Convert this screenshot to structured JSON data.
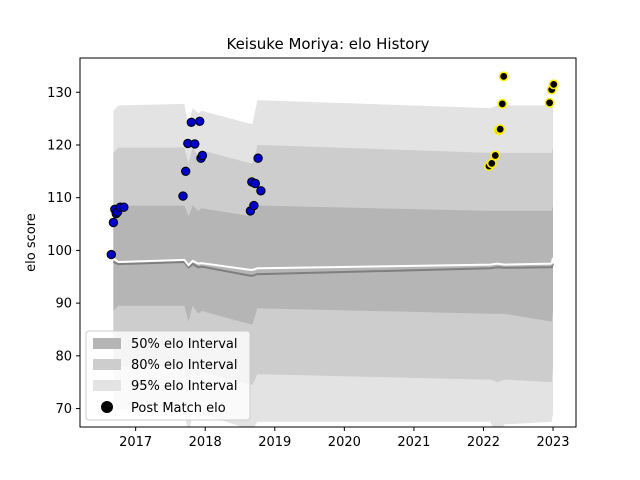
{
  "chart_data": {
    "type": "line",
    "title": "Keisuke Moriya: elo History",
    "xlabel": "",
    "ylabel": "elo score",
    "xlim": [
      2016.2,
      2023.33
    ],
    "ylim": [
      66.5,
      136.5
    ],
    "x_ticks": [
      2017,
      2018,
      2019,
      2020,
      2021,
      2022,
      2023
    ],
    "x_tick_labels": [
      "2017",
      "2018",
      "2019",
      "2020",
      "2021",
      "2022",
      "2023"
    ],
    "y_ticks": [
      70,
      80,
      90,
      100,
      110,
      120,
      130
    ],
    "y_tick_labels": [
      "70",
      "80",
      "90",
      "100",
      "110",
      "120",
      "130"
    ],
    "grid": false,
    "legend_position": "lower-left",
    "legend": [
      {
        "label": "50% elo Interval",
        "swatch": "band50"
      },
      {
        "label": "80% elo Interval",
        "swatch": "band80"
      },
      {
        "label": "95% elo Interval",
        "swatch": "band95"
      },
      {
        "label": "Post Match elo",
        "swatch": "marker"
      }
    ],
    "colors": {
      "band95": "#e3e3e3",
      "band80": "#cdcdcd",
      "band50": "#b5b5b5",
      "mean_line": "#ffffff",
      "median_line": "#7f7f7f",
      "point_blue": "#0000cc",
      "point_yellow": "#ffee00",
      "point_edge": "#000000"
    },
    "bands": {
      "x": [
        2016.68,
        2016.75,
        2017.7,
        2017.76,
        2017.82,
        2017.9,
        2017.95,
        2018.65,
        2018.68,
        2018.75,
        2018.8,
        2022.1,
        2022.2,
        2022.3,
        2022.98,
        2023.0
      ],
      "p95_upper": [
        126.5,
        127.5,
        127.8,
        123.5,
        127.0,
        126.0,
        126.5,
        124.0,
        124.0,
        128.5,
        128.5,
        127.0,
        127.5,
        127.5,
        127.5,
        127.5
      ],
      "p80_upper": [
        118.5,
        119.5,
        119.5,
        116.5,
        119.5,
        118.0,
        119.0,
        116.5,
        116.5,
        120.0,
        120.0,
        118.5,
        118.5,
        118.5,
        118.5,
        119.5
      ],
      "p50_upper": [
        107.5,
        108.5,
        108.5,
        106.5,
        108.5,
        107.5,
        108.0,
        106.5,
        106.5,
        108.5,
        108.5,
        107.5,
        107.5,
        107.5,
        107.5,
        108.5
      ],
      "p50_lower": [
        88.5,
        89.5,
        89.5,
        86.5,
        89.5,
        88.0,
        88.5,
        86.0,
        86.0,
        89.0,
        89.0,
        88.0,
        88.0,
        88.0,
        86.5,
        88.5
      ],
      "p80_lower": [
        77.5,
        78.0,
        78.0,
        73.5,
        77.5,
        76.0,
        77.0,
        74.5,
        74.5,
        76.5,
        76.5,
        75.5,
        75.0,
        75.5,
        75.0,
        78.0
      ],
      "p95_lower": [
        69.5,
        70.0,
        69.5,
        65.0,
        69.0,
        68.0,
        69.0,
        66.0,
        66.0,
        67.5,
        67.5,
        67.5,
        64.5,
        67.0,
        67.5,
        69.0
      ]
    },
    "mean_line": {
      "x": [
        2016.68,
        2016.75,
        2017.7,
        2017.76,
        2017.82,
        2017.9,
        2017.95,
        2018.65,
        2018.68,
        2018.75,
        2018.8,
        2022.1,
        2022.2,
        2022.3,
        2022.98,
        2023.0
      ],
      "y": [
        98.5,
        97.8,
        98.2,
        97.2,
        98.0,
        97.5,
        97.6,
        96.3,
        96.3,
        96.6,
        96.6,
        97.3,
        97.5,
        97.3,
        97.5,
        98.6
      ]
    },
    "median_line": {
      "x": [
        2016.68,
        2016.75,
        2017.7,
        2017.76,
        2017.82,
        2017.9,
        2017.95,
        2018.65,
        2018.68,
        2018.75,
        2018.8,
        2022.1,
        2022.2,
        2022.3,
        2022.98,
        2023.0
      ],
      "y": [
        97.8,
        97.4,
        97.8,
        96.8,
        97.4,
        96.8,
        96.9,
        95.2,
        95.2,
        95.5,
        95.5,
        96.6,
        96.8,
        96.7,
        96.8,
        97.5
      ]
    },
    "points": [
      {
        "x": 2016.65,
        "y": 99.2,
        "color": "blue"
      },
      {
        "x": 2016.68,
        "y": 105.3,
        "color": "blue"
      },
      {
        "x": 2016.7,
        "y": 107.8,
        "color": "blue"
      },
      {
        "x": 2016.72,
        "y": 107.0,
        "color": "blue"
      },
      {
        "x": 2016.74,
        "y": 107.3,
        "color": "blue"
      },
      {
        "x": 2016.78,
        "y": 108.2,
        "color": "blue"
      },
      {
        "x": 2016.83,
        "y": 108.2,
        "color": "blue"
      },
      {
        "x": 2017.68,
        "y": 110.3,
        "color": "blue"
      },
      {
        "x": 2017.72,
        "y": 115.0,
        "color": "blue"
      },
      {
        "x": 2017.75,
        "y": 120.3,
        "color": "blue"
      },
      {
        "x": 2017.8,
        "y": 124.3,
        "color": "blue"
      },
      {
        "x": 2017.85,
        "y": 120.2,
        "color": "blue"
      },
      {
        "x": 2017.92,
        "y": 124.5,
        "color": "blue"
      },
      {
        "x": 2017.94,
        "y": 117.5,
        "color": "blue"
      },
      {
        "x": 2017.96,
        "y": 118.0,
        "color": "blue"
      },
      {
        "x": 2018.65,
        "y": 107.5,
        "color": "blue"
      },
      {
        "x": 2018.67,
        "y": 113.0,
        "color": "blue"
      },
      {
        "x": 2018.7,
        "y": 108.5,
        "color": "blue"
      },
      {
        "x": 2018.72,
        "y": 112.7,
        "color": "blue"
      },
      {
        "x": 2018.76,
        "y": 117.5,
        "color": "blue"
      },
      {
        "x": 2018.8,
        "y": 111.3,
        "color": "blue"
      },
      {
        "x": 2022.08,
        "y": 116.0,
        "color": "yellow"
      },
      {
        "x": 2022.12,
        "y": 116.5,
        "color": "yellow"
      },
      {
        "x": 2022.17,
        "y": 118.0,
        "color": "yellow"
      },
      {
        "x": 2022.22,
        "y": 122.8,
        "color": "yellow"
      },
      {
        "x": 2022.24,
        "y": 123.0,
        "color": "yellow"
      },
      {
        "x": 2022.27,
        "y": 127.8,
        "color": "yellow"
      },
      {
        "x": 2022.29,
        "y": 133.0,
        "color": "yellow"
      },
      {
        "x": 2022.95,
        "y": 128.0,
        "color": "yellow"
      },
      {
        "x": 2022.98,
        "y": 130.5,
        "color": "yellow"
      },
      {
        "x": 2023.01,
        "y": 131.5,
        "color": "yellow"
      }
    ]
  }
}
